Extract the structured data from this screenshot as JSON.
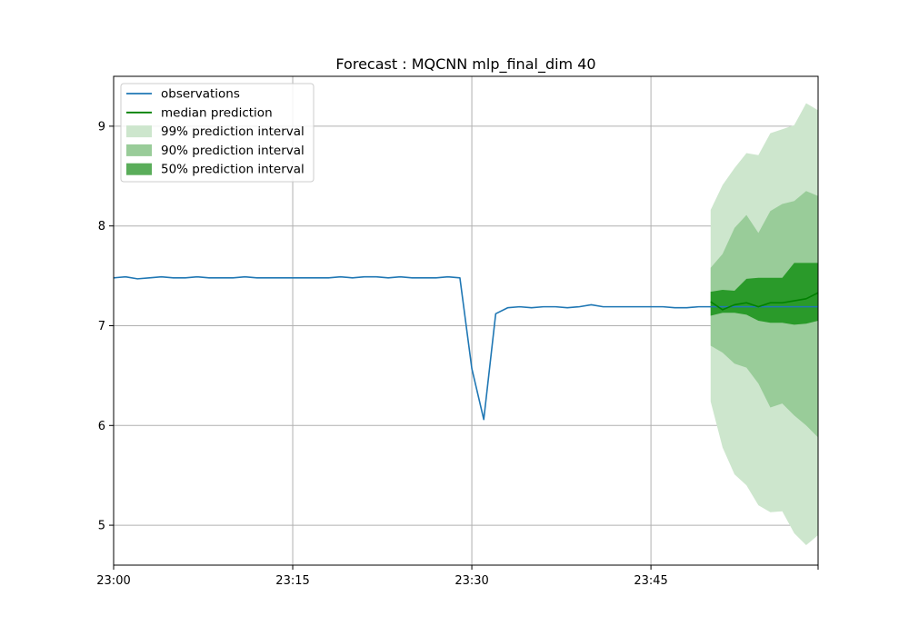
{
  "chart_data": {
    "type": "line",
    "title": "Forecast : MQCNN mlp_final_dim 40",
    "xlabel": "",
    "ylabel": "",
    "grid": true,
    "legend_position": "top-left",
    "x_axis": {
      "unit": "minute",
      "range": [
        "23:00",
        "23:59"
      ],
      "ticks": [
        "23:00",
        "23:15",
        "23:30",
        "23:45"
      ]
    },
    "y_axis": {
      "range": [
        4.6,
        9.5
      ],
      "ticks": [
        5,
        6,
        7,
        8,
        9
      ]
    },
    "legend": [
      "observations",
      "median prediction",
      "99% prediction interval",
      "90% prediction interval",
      "50% prediction interval"
    ],
    "colors": {
      "observations": "#1f77b4",
      "median": "#008000",
      "interval_99": "#cde6cd",
      "interval_90": "#99cc99",
      "interval_50": "#5aad5a",
      "interval_overlap": "#2a9a2a"
    },
    "observations": {
      "start": "23:00",
      "step_minutes": 1,
      "values": [
        7.48,
        7.49,
        7.47,
        7.48,
        7.49,
        7.48,
        7.48,
        7.49,
        7.48,
        7.48,
        7.48,
        7.49,
        7.48,
        7.48,
        7.48,
        7.48,
        7.48,
        7.48,
        7.48,
        7.49,
        7.48,
        7.49,
        7.49,
        7.48,
        7.49,
        7.48,
        7.48,
        7.48,
        7.49,
        7.48,
        6.57,
        6.06,
        7.12,
        7.18,
        7.19,
        7.18,
        7.19,
        7.19,
        7.18,
        7.19,
        7.21,
        7.19,
        7.19,
        7.19,
        7.19,
        7.19,
        7.19,
        7.18,
        7.18,
        7.19,
        7.19,
        7.19,
        7.19,
        7.19,
        7.19,
        7.19,
        7.19,
        7.19,
        7.19,
        7.19
      ]
    },
    "forecast": {
      "start": "23:50",
      "step_minutes": 1,
      "median": [
        7.24,
        7.16,
        7.21,
        7.23,
        7.19,
        7.23,
        7.23,
        7.25,
        7.27,
        7.33
      ],
      "interval_50": {
        "lower": [
          7.1,
          7.13,
          7.13,
          7.11,
          7.05,
          7.03,
          7.03,
          7.01,
          7.02,
          7.05
        ],
        "upper": [
          7.34,
          7.36,
          7.35,
          7.47,
          7.48,
          7.48,
          7.48,
          7.63,
          7.63,
          7.63
        ]
      },
      "interval_90": {
        "lower": [
          6.8,
          6.73,
          6.62,
          6.58,
          6.42,
          6.18,
          6.22,
          6.1,
          6.0,
          5.88
        ],
        "upper": [
          7.58,
          7.72,
          7.98,
          8.11,
          7.93,
          8.15,
          8.22,
          8.25,
          8.35,
          8.3
        ]
      },
      "interval_99": {
        "lower": [
          6.24,
          5.78,
          5.51,
          5.4,
          5.2,
          5.13,
          5.14,
          4.92,
          4.8,
          4.9
        ],
        "upper": [
          8.16,
          8.41,
          8.58,
          8.73,
          8.71,
          8.93,
          8.97,
          9.01,
          9.23,
          9.16
        ]
      }
    }
  }
}
